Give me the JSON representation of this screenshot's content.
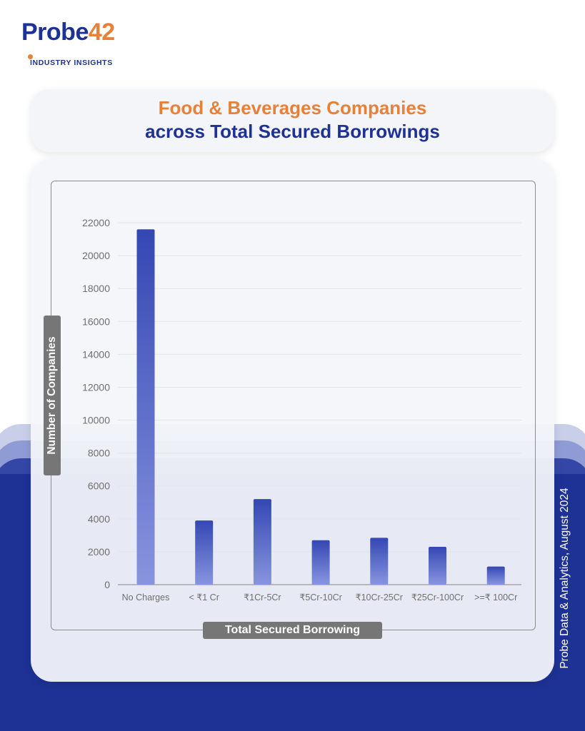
{
  "brand": {
    "name_part1": "Probe",
    "name_part2": "42",
    "tagline": "INDUSTRY INSIGHTS",
    "colors": {
      "primary": "#1e3295",
      "accent": "#e7813a"
    }
  },
  "header": {
    "title_line1": "Food & Beverages Companies",
    "title_line2": "across Total Secured Borrowings"
  },
  "chart_data": {
    "type": "bar",
    "categories": [
      "No Charges",
      "< ₹1 Cr",
      "₹1Cr-5Cr",
      "₹5Cr-10Cr",
      "₹10Cr-25Cr",
      "₹25Cr-100Cr",
      ">=₹ 100Cr"
    ],
    "values": [
      21600,
      3900,
      5200,
      2700,
      2850,
      2300,
      1100
    ],
    "xlabel": "Total Secured Borrowing",
    "ylabel": "Number of Companies",
    "ylim": [
      0,
      22000
    ],
    "yticks": [
      0,
      2000,
      4000,
      6000,
      8000,
      10000,
      12000,
      14000,
      16000,
      18000,
      20000,
      22000
    ],
    "grid": true,
    "bar_gradient": [
      "#3447b3",
      "#8795df"
    ]
  },
  "footer": {
    "source": "Probe Data & Analytics, August 2024"
  }
}
